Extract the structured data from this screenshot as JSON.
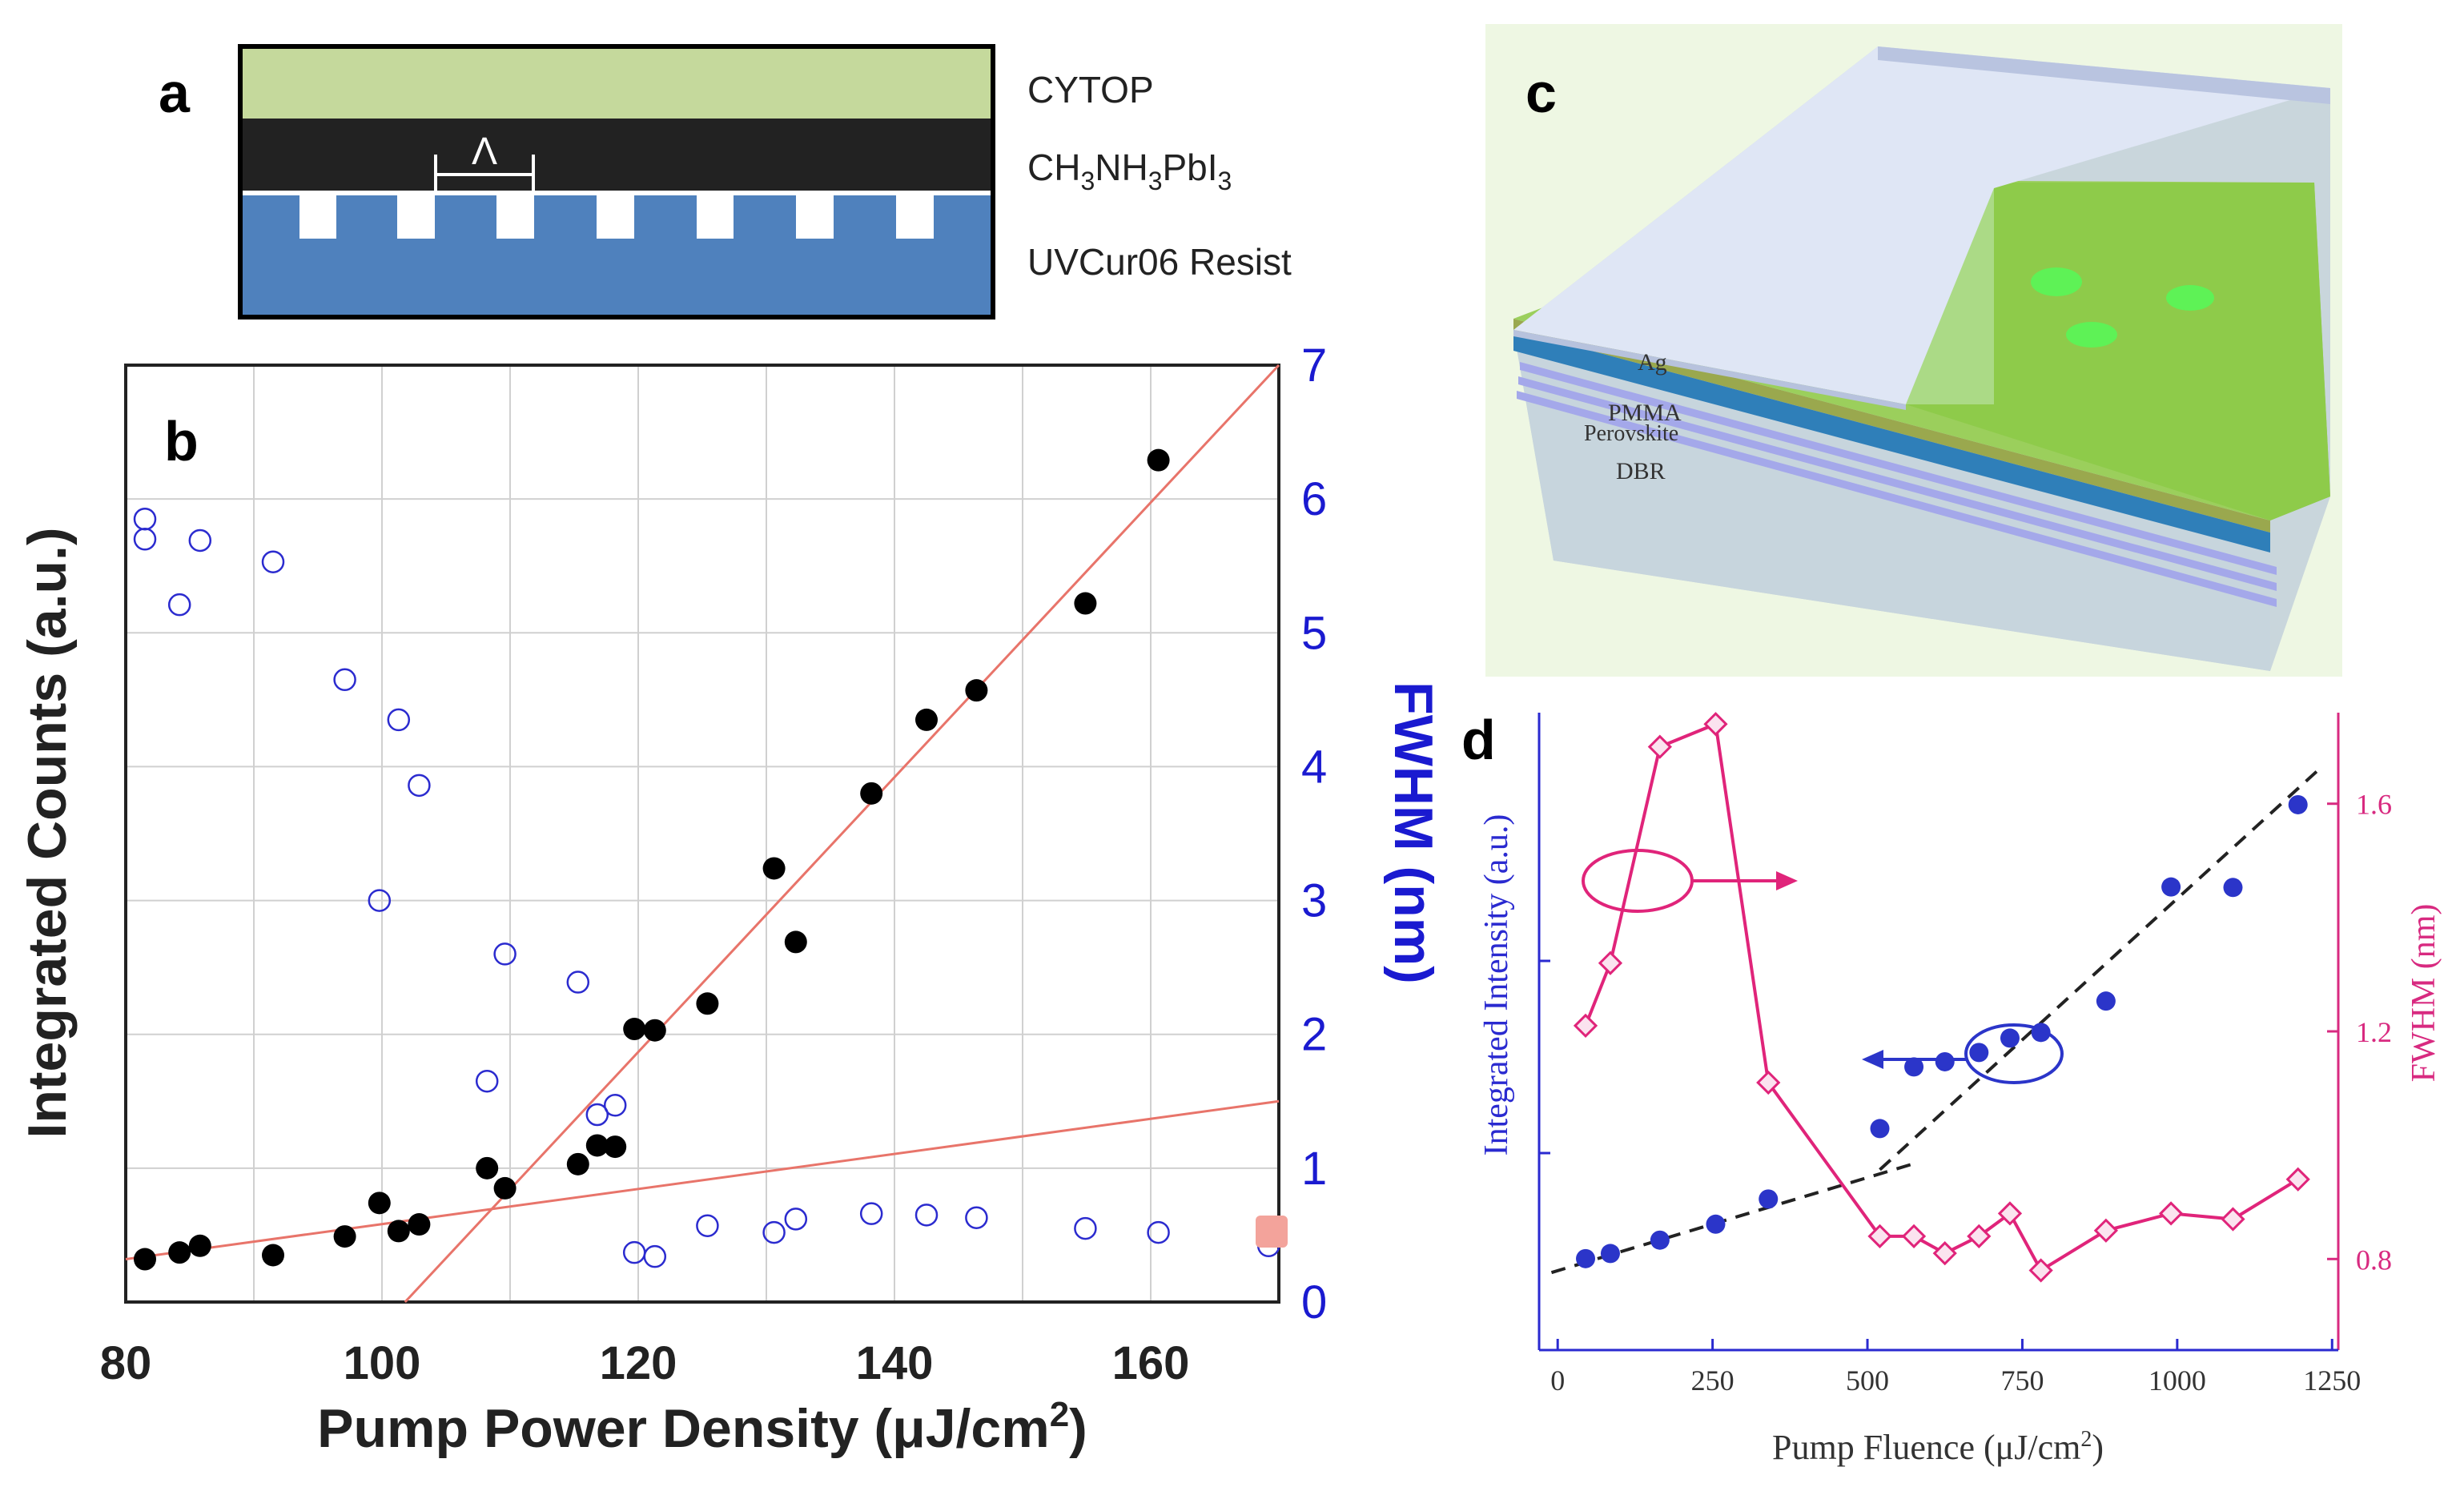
{
  "panel_letters": {
    "a": "a",
    "b": "b",
    "c": "c",
    "d": "d"
  },
  "panel_a": {
    "layer_top": "CYTOP",
    "layer_mid_parts": [
      "CH",
      "3",
      "NH",
      "3",
      "PbI",
      "3"
    ],
    "layer_bottom": "UVCur06 Resist",
    "period_symbol": "Λ",
    "colors": {
      "cytop": "#c5d99c",
      "perovskite": "#222222",
      "resist": "#4f81bd"
    }
  },
  "panel_c": {
    "labels": [
      "Ag",
      "PMMA",
      "Perovskite",
      "DBR"
    ],
    "colors": {
      "ag": "#dfe6f5",
      "pmma": "#2f7fb9",
      "perovskite": "#9aa84e",
      "dbr": "#a4a8ea",
      "substrate": "#c9d6dc",
      "background": "#eef7e3"
    }
  },
  "chart_data": [
    {
      "id": "b",
      "type": "scatter",
      "xlabel_parts": [
        "Pump Power Density (",
        "μ",
        "J/cm",
        "2",
        ")"
      ],
      "ylabel": "Integrated Counts (a.u.)",
      "y2label": "FWHM (nm)",
      "xlim": [
        80,
        170
      ],
      "ylim": [
        0,
        7
      ],
      "y2lim": [
        0,
        7
      ],
      "xticks": [
        80,
        100,
        120,
        140,
        160
      ],
      "y2ticks": [
        0,
        1,
        2,
        3,
        4,
        5,
        6,
        7
      ],
      "grid": true,
      "colors": {
        "counts": "#000000",
        "fwhm": "#2b2bcf",
        "fit": "#e8746a",
        "axis2": "#1a1ad0"
      },
      "series": [
        {
          "name": "Integrated Counts",
          "style": "filled",
          "axis": "left",
          "x": [
            81.5,
            84.2,
            85.8,
            91.5,
            97.1,
            99.8,
            101.3,
            102.9,
            108.2,
            109.6,
            115.3,
            116.8,
            118.2,
            119.7,
            121.3,
            125.4,
            130.6,
            132.3,
            138.2,
            142.5,
            146.4,
            154.9,
            160.6
          ],
          "y": [
            0.32,
            0.37,
            0.42,
            0.35,
            0.49,
            0.74,
            0.53,
            0.58,
            1.0,
            0.85,
            1.03,
            1.17,
            1.16,
            2.04,
            2.03,
            2.23,
            3.24,
            2.69,
            3.8,
            4.35,
            4.57,
            5.22,
            6.29
          ]
        },
        {
          "name": "FWHM",
          "style": "open",
          "axis": "right",
          "x": [
            81.5,
            81.5,
            84.2,
            85.8,
            91.5,
            97.1,
            99.8,
            101.3,
            102.9,
            108.2,
            109.6,
            115.3,
            116.8,
            118.2,
            119.7,
            121.3,
            125.4,
            130.6,
            132.3,
            138.2,
            142.5,
            146.4,
            154.9,
            160.6,
            169.2
          ],
          "y": [
            5.85,
            5.7,
            5.21,
            5.69,
            5.53,
            4.65,
            3.0,
            4.35,
            3.86,
            1.65,
            2.6,
            2.39,
            1.4,
            1.47,
            0.37,
            0.34,
            0.57,
            0.52,
            0.62,
            0.66,
            0.65,
            0.63,
            0.55,
            0.52,
            0.42
          ]
        },
        {
          "name": "Low fit",
          "style": "line",
          "axis": "left",
          "x": [
            80,
            170
          ],
          "y": [
            0.32,
            1.5
          ]
        },
        {
          "name": "High fit",
          "style": "line",
          "axis": "left",
          "x": [
            101.8,
            170
          ],
          "y": [
            0,
            7.0
          ]
        }
      ]
    },
    {
      "id": "d",
      "type": "line",
      "xlabel_parts": [
        "Pump Fluence (μJ/cm",
        "2",
        ")"
      ],
      "ylabel": "Integrated Intensity (a.u.)",
      "y2label": "FWHM (nm)",
      "xlim": [
        -30,
        1260
      ],
      "ylim": [
        0,
        1
      ],
      "y2lim": [
        0.64,
        1.76
      ],
      "xticks": [
        0,
        250,
        500,
        750,
        1000,
        1250
      ],
      "y2ticks": [
        0.8,
        1.2,
        1.6
      ],
      "grid": false,
      "colors": {
        "intensity": "#2b35c9",
        "fwhm": "#e0247a",
        "fit": "#222222",
        "axis_left": "#2a2ad0",
        "axis_right": "#d82a80"
      },
      "series": [
        {
          "name": "Integrated Intensity",
          "style": "circles",
          "axis": "left",
          "x": [
            45,
            85,
            165,
            255,
            340,
            520,
            575,
            625,
            680,
            730,
            780,
            885,
            990,
            1090,
            1195
          ],
          "y": [
            0.047,
            0.057,
            0.083,
            0.114,
            0.163,
            0.3,
            0.42,
            0.43,
            0.448,
            0.476,
            0.487,
            0.548,
            0.77,
            0.769,
            0.93
          ]
        },
        {
          "name": "FWHM",
          "style": "diamonds",
          "axis": "right",
          "x": [
            45,
            85,
            165,
            255,
            340,
            520,
            575,
            625,
            680,
            730,
            780,
            885,
            990,
            1090,
            1195
          ],
          "y": [
            1.21,
            1.32,
            1.7,
            1.74,
            1.11,
            0.84,
            0.84,
            0.81,
            0.84,
            0.88,
            0.78,
            0.85,
            0.88,
            0.87,
            0.94
          ]
        },
        {
          "name": "Low fit",
          "style": "dashed",
          "axis": "left",
          "x": [
            -10,
            570
          ],
          "y": [
            0.02,
            0.23
          ]
        },
        {
          "name": "High fit",
          "style": "dashed",
          "axis": "left",
          "x": [
            520,
            1230
          ],
          "y": [
            0.22,
            1.0
          ]
        }
      ],
      "annotations": {
        "left_arrow": "left",
        "right_arrow": "right"
      }
    }
  ]
}
